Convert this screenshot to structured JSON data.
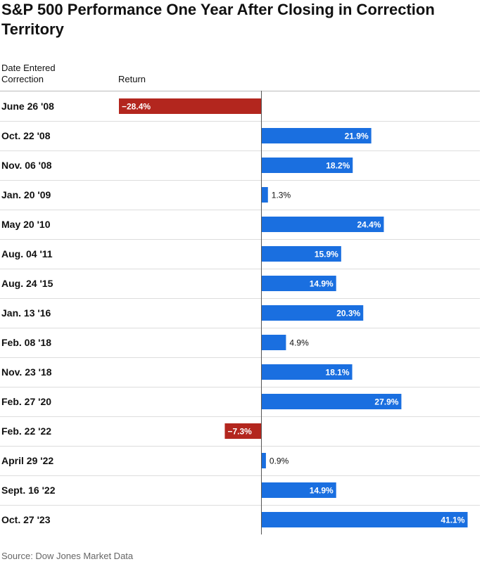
{
  "chart_data": {
    "type": "bar",
    "orientation": "horizontal",
    "title": "S&P 500 Performance One Year After Closing in Correction Territory",
    "category_header": "Date Entered Correction",
    "value_header": "Return",
    "categories": [
      "June 26 '08",
      "Oct. 22 '08",
      "Nov. 06 '08",
      "Jan. 20 '09",
      "May 20 '10",
      "Aug. 04 '11",
      "Aug. 24 '15",
      "Jan. 13 '16",
      "Feb. 08 '18",
      "Nov. 23 '18",
      "Feb. 27 '20",
      "Feb. 22 '22",
      "April 29 '22",
      "Sept. 16 '22",
      "Oct. 27 '23"
    ],
    "values": [
      -28.4,
      21.9,
      18.2,
      1.3,
      24.4,
      15.9,
      14.9,
      20.3,
      4.9,
      18.1,
      27.9,
      -7.3,
      0.9,
      14.9,
      41.1
    ],
    "value_labels": [
      "−28.4%",
      "21.9%",
      "18.2%",
      "1.3%",
      "24.4%",
      "15.9%",
      "14.9%",
      "20.3%",
      "4.9%",
      "18.1%",
      "27.9%",
      "−7.3%",
      "0.9%",
      "14.9%",
      "41.1%"
    ],
    "colors": {
      "positive": "#1a6fe0",
      "negative": "#b3261e",
      "grid": "#dddddd",
      "axis": "#555555"
    },
    "grid": true,
    "legend": false
  },
  "source": "Source: Dow Jones Market Data"
}
